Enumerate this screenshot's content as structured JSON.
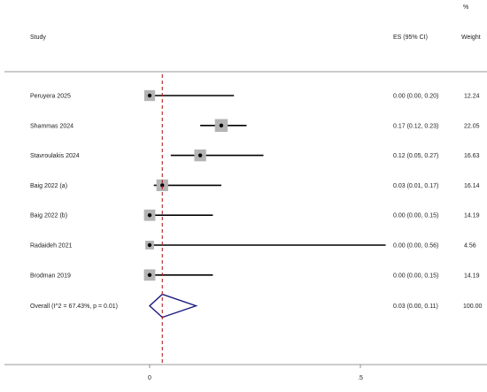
{
  "chart_data": {
    "type": "forest",
    "header": {
      "study": "Study",
      "es": "ES (95% CI)",
      "weight_top": "%",
      "weight": "Weight"
    },
    "x_ticks": [
      "0",
      ".5"
    ],
    "xlim": [
      -0.33,
      0.78
    ],
    "reference_line": 0.03,
    "studies": [
      {
        "label": "Peruyera 2025",
        "es": 0.0,
        "lo": 0.0,
        "hi": 0.2,
        "ci_text": "0.00 (0.00, 0.20)",
        "weight": 12.24,
        "weight_text": "12.24"
      },
      {
        "label": "Shammas 2024",
        "es": 0.17,
        "lo": 0.12,
        "hi": 0.23,
        "ci_text": "0.17 (0.12, 0.23)",
        "weight": 22.05,
        "weight_text": "22.05"
      },
      {
        "label": "Stavroulakis 2024",
        "es": 0.12,
        "lo": 0.05,
        "hi": 0.27,
        "ci_text": "0.12 (0.05, 0.27)",
        "weight": 16.63,
        "weight_text": "16.63"
      },
      {
        "label": "Baig 2022 (a)",
        "es": 0.03,
        "lo": 0.01,
        "hi": 0.17,
        "ci_text": "0.03 (0.01, 0.17)",
        "weight": 16.14,
        "weight_text": "16.14"
      },
      {
        "label": "Baig 2022 (b)",
        "es": 0.0,
        "lo": 0.0,
        "hi": 0.15,
        "ci_text": "0.00 (0.00, 0.15)",
        "weight": 14.19,
        "weight_text": "14.19"
      },
      {
        "label": "Radaideh 2021",
        "es": 0.0,
        "lo": 0.0,
        "hi": 0.56,
        "ci_text": "0.00 (0.00, 0.56)",
        "weight": 4.56,
        "weight_text": "4.56"
      },
      {
        "label": "Brodman 2019",
        "es": 0.0,
        "lo": 0.0,
        "hi": 0.15,
        "ci_text": "0.00 (0.00, 0.15)",
        "weight": 14.19,
        "weight_text": "14.19"
      }
    ],
    "overall": {
      "label": "Overall  (I^2 = 67.43%, p = 0.01)",
      "es": 0.03,
      "lo": 0.0,
      "hi": 0.11,
      "ci_text": "0.03 (0.00, 0.11)",
      "weight_text": "100.00"
    },
    "colors": {
      "ci_line": "#000000",
      "box": "#b4b4b4",
      "point": "#000000",
      "diamond": "#1a1a80",
      "reference": "#b22222",
      "rule": "#777777"
    }
  }
}
